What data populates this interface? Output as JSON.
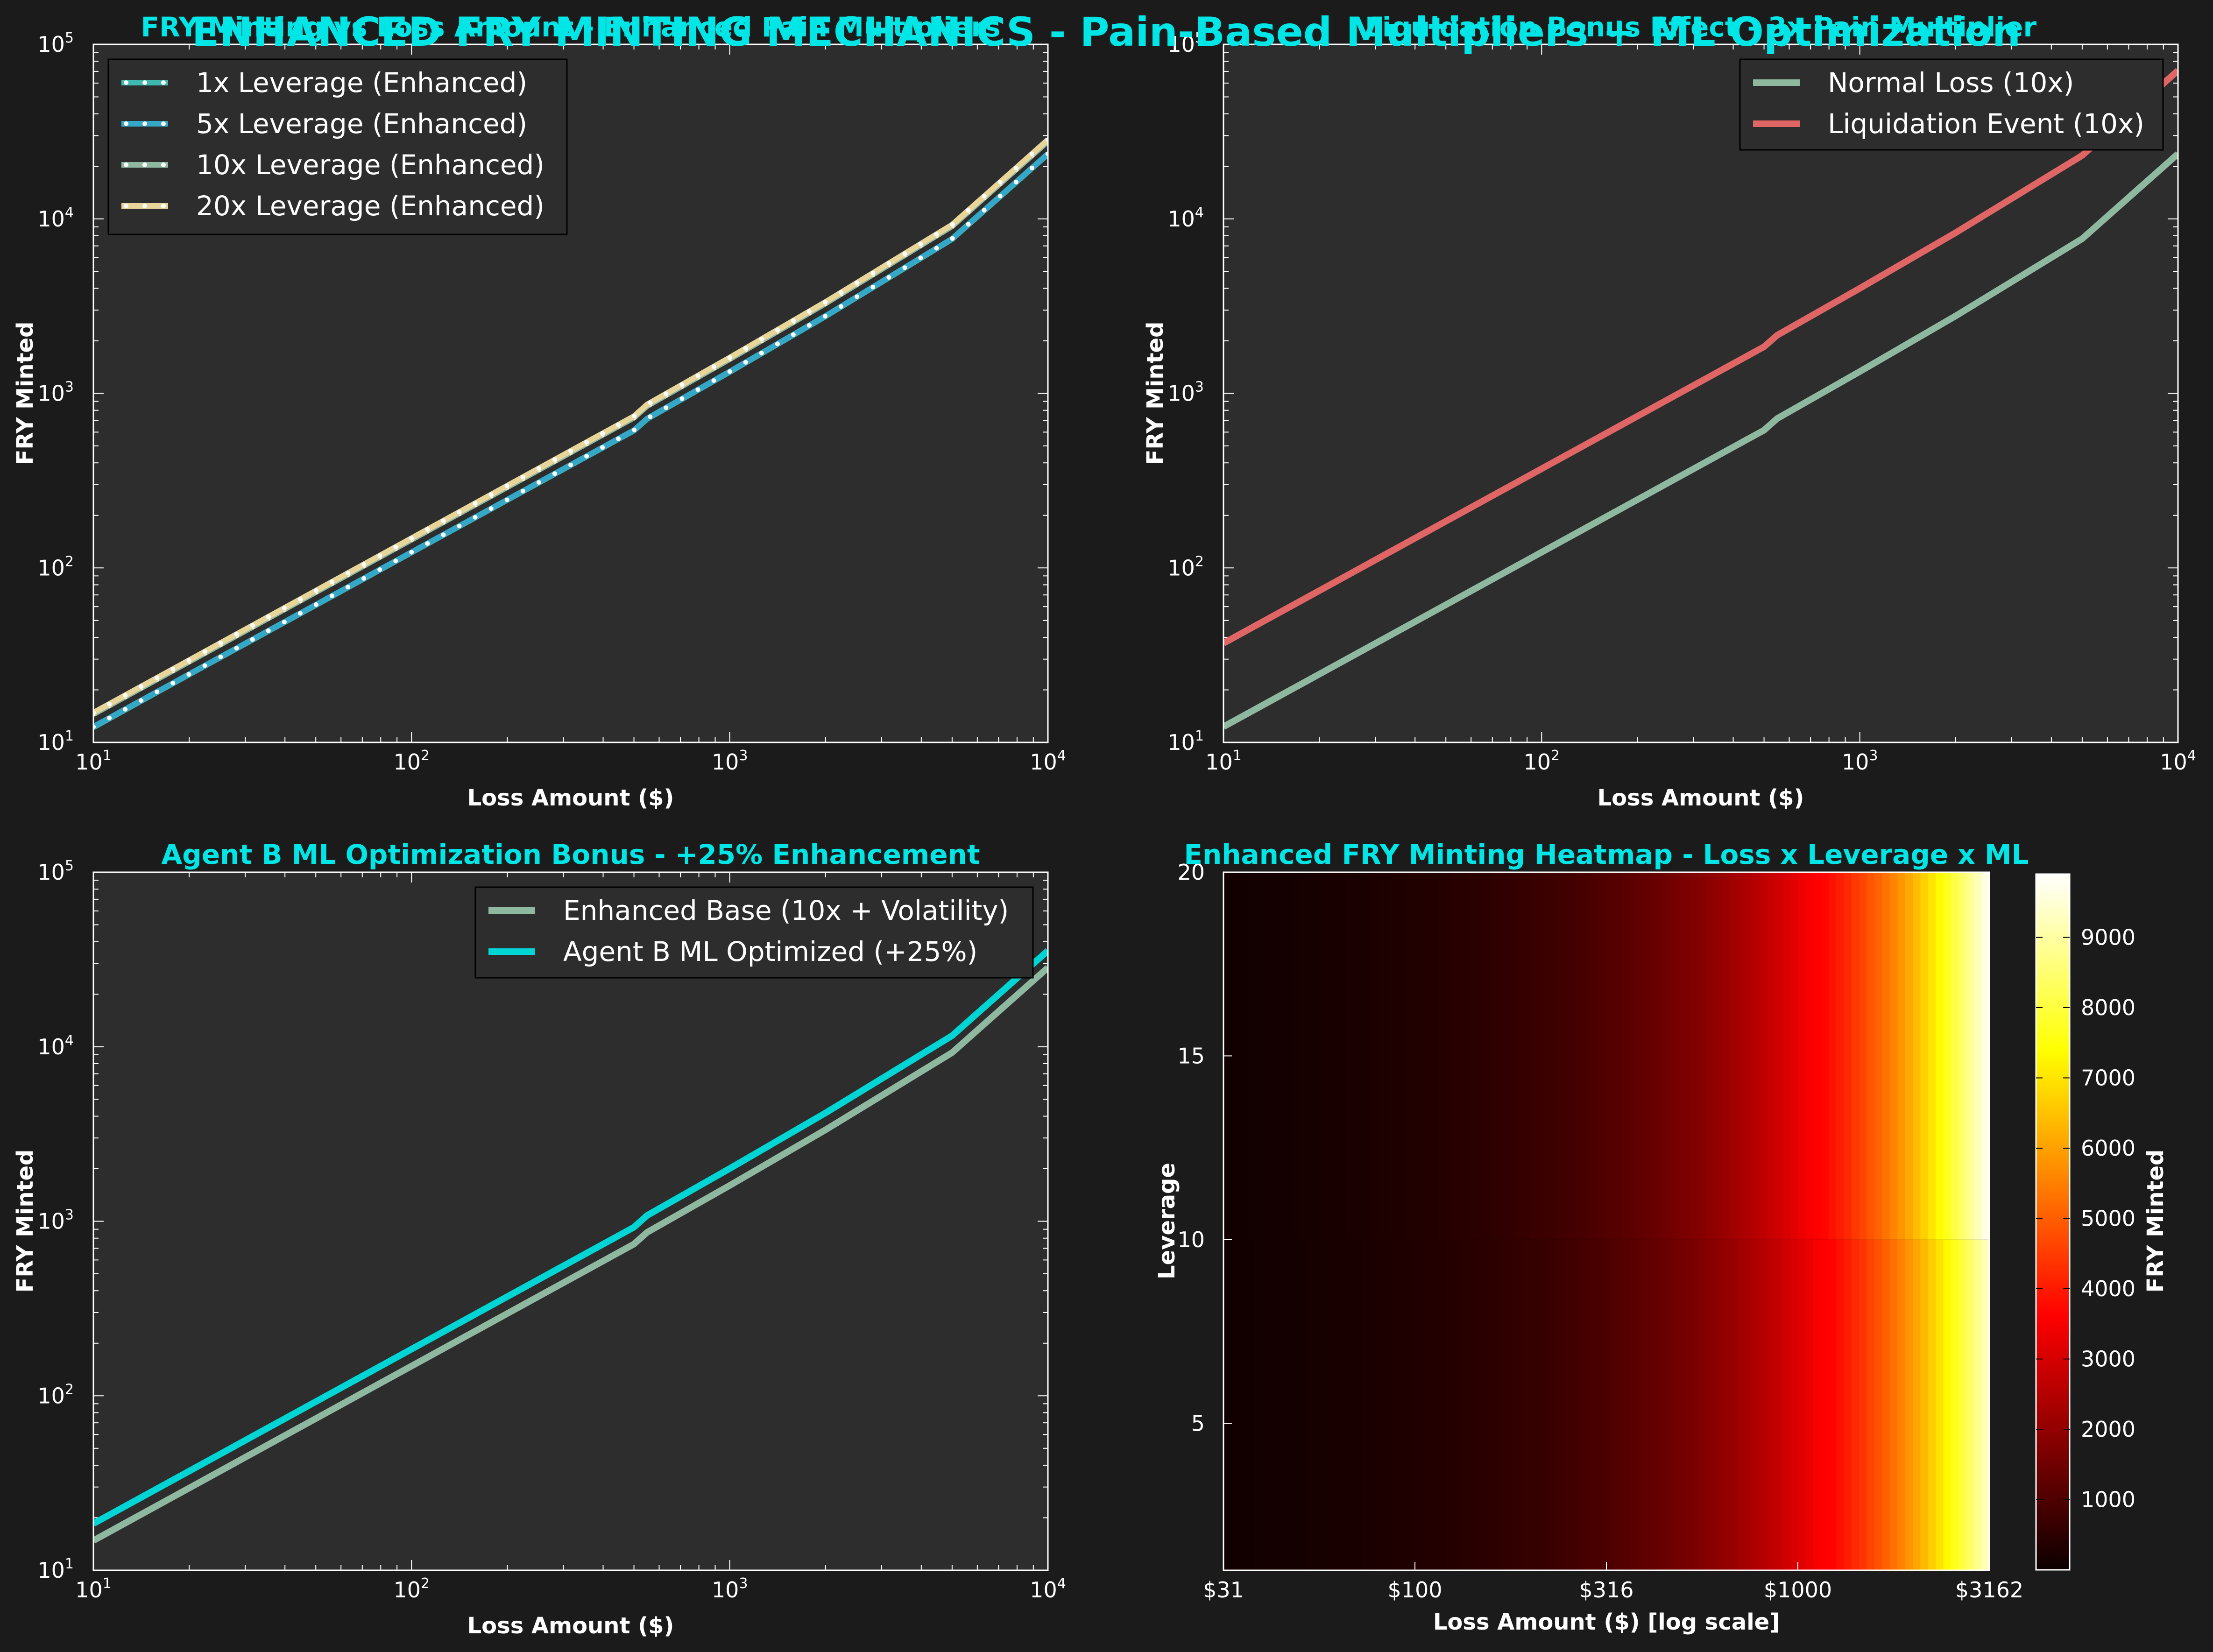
{
  "figure": {
    "suptitle": "ENHANCED FRY MINTING MECHANICS - Pain-Based Multipliers + ML Optimization",
    "colors": {
      "background": "#1b1b1b",
      "axes_face": "#2d2d2d",
      "title": "#00e5e5"
    }
  },
  "chart_data": [
    {
      "id": "leverage",
      "type": "line",
      "title": "FRY Minting vs Loss Amount - Enhanced Pain Multipliers",
      "xlabel": "Loss Amount ($)",
      "ylabel": "FRY Minted",
      "xscale": "log",
      "yscale": "log",
      "xlim": [
        10,
        10000
      ],
      "ylim": [
        10,
        100000
      ],
      "legend": "upper left",
      "x": [
        10,
        20,
        50,
        100,
        200,
        450,
        500,
        550,
        1000,
        2000,
        5000,
        10000
      ],
      "series": [
        {
          "name": "1x Leverage (Enhanced)",
          "color": "#3fb8af",
          "marker": "dot",
          "values": [
            12.2,
            24.5,
            61.2,
            122.5,
            245,
            551,
            612,
            714,
            1327,
            2764,
            7656,
            23480
          ]
        },
        {
          "name": "5x Leverage (Enhanced)",
          "color": "#35a8c8",
          "marker": "dot",
          "values": [
            12.3,
            24.6,
            61.5,
            123,
            246,
            554,
            615,
            718,
            1334,
            2778,
            7695,
            23600
          ]
        },
        {
          "name": "10x Leverage (Enhanced)",
          "color": "#8fb8a0",
          "marker": "dot",
          "values": [
            14.5,
            29,
            72.5,
            145,
            290,
            653,
            725,
            846,
            1571,
            3273,
            9070,
            27800
          ]
        },
        {
          "name": "20x Leverage (Enhanced)",
          "color": "#e8d59a",
          "marker": "dot",
          "values": [
            14.8,
            29.6,
            74,
            148,
            296,
            666,
            740,
            864,
            1604,
            3341,
            9256,
            28400
          ]
        }
      ]
    },
    {
      "id": "liquidation",
      "type": "line",
      "title": "Liquidation Bonus Effect - 3x Pain Multiplier",
      "xlabel": "Loss Amount ($)",
      "ylabel": "FRY Minted",
      "xscale": "log",
      "yscale": "log",
      "xlim": [
        10,
        10000
      ],
      "ylim": [
        10,
        100000
      ],
      "legend": "upper right",
      "x": [
        10,
        20,
        50,
        100,
        200,
        450,
        500,
        550,
        1000,
        2000,
        5000,
        10000
      ],
      "series": [
        {
          "name": "Normal Loss (10x)",
          "color": "#8fb8a0",
          "values": [
            12.3,
            24.6,
            61.5,
            123,
            246,
            554,
            615,
            718,
            1334,
            2778,
            7695,
            23600
          ]
        },
        {
          "name": "Liquidation Event (10x)",
          "color": "#e06666",
          "values": [
            37,
            74,
            185,
            370,
            740,
            1665,
            1850,
            2155,
            4000,
            8330,
            23100,
            70800
          ]
        }
      ]
    },
    {
      "id": "ml",
      "type": "line",
      "title": "Agent B ML Optimization Bonus - +25% Enhancement",
      "xlabel": "Loss Amount ($)",
      "ylabel": "FRY Minted",
      "xscale": "log",
      "yscale": "log",
      "xlim": [
        10,
        10000
      ],
      "ylim": [
        10,
        100000
      ],
      "legend": "upper right",
      "x": [
        10,
        20,
        50,
        100,
        200,
        450,
        500,
        550,
        1000,
        2000,
        5000,
        10000
      ],
      "series": [
        {
          "name": "Enhanced Base (10x + Volatility)",
          "color": "#8fb8a0",
          "values": [
            14.8,
            29.6,
            74,
            148,
            296,
            666,
            740,
            864,
            1604,
            3341,
            9256,
            28400
          ]
        },
        {
          "name": "Agent B ML Optimized (+25%)",
          "color": "#00d5d5",
          "values": [
            18.5,
            37,
            92.5,
            185,
            370,
            832,
            925,
            1080,
            2005,
            4176,
            11570,
            35500
          ]
        }
      ]
    },
    {
      "id": "heatmap",
      "type": "heatmap",
      "title": "Enhanced FRY Minting Heatmap - Loss x Leverage x ML",
      "xlabel": "Loss Amount ($) [log scale]",
      "ylabel": "Leverage",
      "x_tick_labels": [
        "$31",
        "$100",
        "$316",
        "$1000",
        "$3162"
      ],
      "x_log10_range": [
        1.5,
        3.5
      ],
      "y_ticks": [
        5,
        10,
        15,
        20
      ],
      "ylim": [
        1,
        20
      ],
      "colormap": "hot",
      "colorbar_label": "FRY Minted",
      "colorbar_ticks": [
        1000,
        2000,
        3000,
        4000,
        5000,
        6000,
        7000,
        8000,
        9000
      ],
      "value_range": [
        0,
        9900
      ],
      "leverage_break": 10,
      "value_at_max_loss": {
        "below_break": 9400,
        "at_or_above_break": 9900
      }
    }
  ]
}
